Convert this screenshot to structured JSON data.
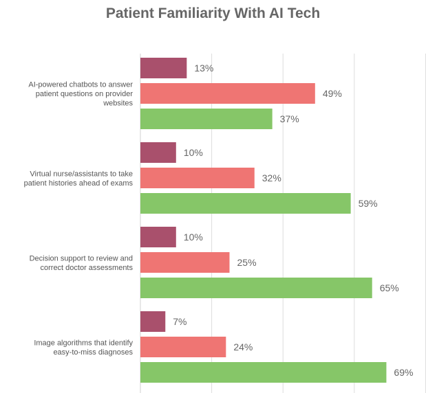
{
  "chart_data": {
    "type": "bar",
    "orientation": "horizontal",
    "title": "Patient Familiarity With AI Tech",
    "xlabel": "",
    "ylabel": "",
    "xlim": [
      0,
      100
    ],
    "grid": true,
    "categories": [
      [
        "AI-powered chatbots to answer",
        "patient questions on provider",
        "websites"
      ],
      [
        "Virtual nurse/assistants to take",
        "patient histories ahead of exams"
      ],
      [
        "Decision support to review and",
        "correct doctor assessments"
      ],
      [
        "Image algorithms that identify",
        "easy-to-miss diagnoses"
      ]
    ],
    "series": [
      {
        "color": "#a9506c",
        "values": [
          13,
          10,
          10,
          7
        ],
        "labels": [
          "13%",
          "10%",
          "10%",
          "7%"
        ]
      },
      {
        "color": "#ef7573",
        "values": [
          49,
          32,
          25,
          24
        ],
        "labels": [
          "49%",
          "32%",
          "25%",
          "24%"
        ]
      },
      {
        "color": "#86c668",
        "values": [
          37,
          59,
          65,
          69
        ],
        "labels": [
          "37%",
          "59%",
          "65%",
          "69%"
        ]
      }
    ]
  }
}
